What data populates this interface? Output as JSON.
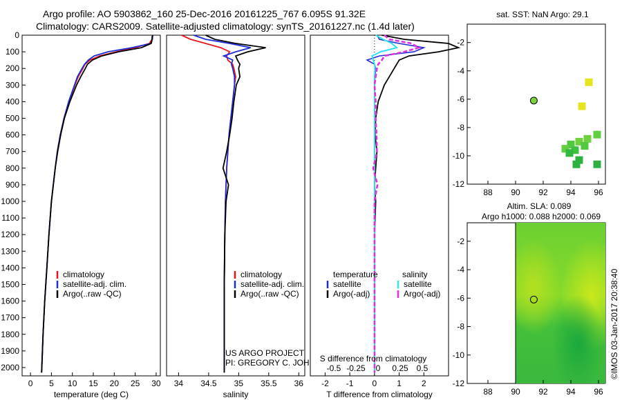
{
  "header": {
    "line1": "Argo profile: AO 5903862_160 25-Dec-2016 20161225_767 6.095S 91.32E",
    "line2": "Climatology: CARS2009. Satellite-adjusted climatology: synTS_20161227.nc (1.4d later)"
  },
  "watermark": "©IMOS 03-Jan-2017 20:38:40",
  "credit": {
    "line1": "US ARGO PROJECT",
    "line2": "PI: GREGORY C. JOHNSON"
  },
  "colors": {
    "climatology": "#e8141c",
    "satellite": "#1a2cd8",
    "argo": "#000000",
    "sal_satellite": "#33e0f0",
    "sal_argo": "#e030e0"
  },
  "chart_data": [
    {
      "type": "line",
      "xlabel": "temperature (deg C)",
      "ylabel": "",
      "xlim": [
        -2,
        31
      ],
      "ylim": [
        2050,
        0
      ],
      "xticks": [
        "0",
        "5",
        "10",
        "15",
        "20",
        "25",
        "30"
      ],
      "yticks": [
        "0",
        "100",
        "200",
        "300",
        "400",
        "500",
        "600",
        "700",
        "800",
        "900",
        "1000",
        "1100",
        "1200",
        "1300",
        "1400",
        "1500",
        "1600",
        "1700",
        "1800",
        "1900",
        "2000"
      ],
      "legend": [
        "climatology",
        "satellite-adj. clim.",
        "Argo(..raw -QC)"
      ],
      "legend_position": "lower-middle",
      "depth": [
        0,
        25,
        50,
        75,
        100,
        125,
        150,
        175,
        200,
        250,
        300,
        400,
        500,
        600,
        700,
        800,
        1000,
        1200,
        1400,
        1600,
        1800,
        2000,
        2030
      ],
      "series": [
        {
          "name": "climatology",
          "values": [
            29.1,
            29.0,
            28.4,
            25.0,
            20.5,
            16.5,
            14.2,
            13.0,
            12.5,
            11.4,
            10.6,
            9.2,
            8.0,
            7.1,
            6.4,
            5.9,
            5.0,
            4.4,
            3.9,
            3.4,
            3.0,
            2.7,
            2.65
          ]
        },
        {
          "name": "satellite-adj. clim.",
          "values": [
            29.2,
            29.1,
            28.8,
            24.2,
            18.5,
            15.2,
            13.8,
            12.9,
            12.3,
            11.2,
            10.5,
            9.1,
            8.0,
            7.1,
            6.4,
            5.9,
            5.0,
            4.4,
            3.9,
            3.4,
            3.0,
            2.7,
            2.65
          ]
        },
        {
          "name": "Argo(..raw -QC)",
          "values": [
            29.1,
            29.0,
            28.8,
            26.5,
            21.0,
            17.0,
            14.8,
            13.6,
            13.1,
            12.0,
            11.0,
            9.4,
            8.1,
            7.2,
            6.5,
            5.9,
            5.0,
            4.4,
            3.9,
            3.4,
            3.0,
            2.7,
            2.65
          ]
        }
      ]
    },
    {
      "type": "line",
      "xlabel": "salinity",
      "ylabel": "",
      "xlim": [
        33.8,
        36.1
      ],
      "ylim": [
        2050,
        0
      ],
      "xticks": [
        "34",
        "34.5",
        "35",
        "35.5",
        "36"
      ],
      "legend": [
        "climatology",
        "satellite-adj. clim.",
        "Argo(..raw -QC)"
      ],
      "legend_position": "lower-right",
      "depth": [
        0,
        25,
        50,
        75,
        100,
        125,
        150,
        175,
        200,
        250,
        300,
        400,
        500,
        600,
        700,
        800,
        900,
        1000,
        1200,
        1500,
        2000,
        2030
      ],
      "series": [
        {
          "name": "climatology",
          "values": [
            34.05,
            34.2,
            34.45,
            34.7,
            34.85,
            34.8,
            34.82,
            34.9,
            34.92,
            34.95,
            34.93,
            34.9,
            34.87,
            34.84,
            34.82,
            34.8,
            34.79,
            34.78,
            34.77,
            34.76,
            34.76,
            34.76
          ]
        },
        {
          "name": "satellite-adj. clim.",
          "values": [
            34.25,
            34.45,
            34.85,
            35.2,
            34.95,
            34.75,
            34.9,
            34.88,
            34.9,
            34.93,
            34.93,
            34.9,
            34.87,
            34.84,
            34.82,
            34.8,
            34.79,
            34.78,
            34.77,
            34.76,
            34.76,
            34.76
          ]
        },
        {
          "name": "Argo(..raw -QC)",
          "values": [
            34.45,
            34.6,
            34.95,
            35.45,
            35.15,
            34.95,
            34.98,
            35.02,
            35.0,
            35.02,
            34.96,
            34.92,
            34.89,
            34.85,
            34.8,
            34.74,
            34.83,
            34.79,
            34.77,
            34.76,
            34.76,
            34.76
          ]
        }
      ]
    },
    {
      "type": "line",
      "xlabel": "T difference from climatology",
      "x2label": "S difference from climatology",
      "xlim": [
        -2.6,
        3.0
      ],
      "ylim": [
        2050,
        0
      ],
      "xticks": [
        "-2",
        "-1",
        "0",
        "1",
        "2"
      ],
      "x2ticks": [
        "-0.5",
        "-0.25",
        "0",
        "0.25",
        "0.5"
      ],
      "legend_temperature": {
        "title": "temperature",
        "entries": [
          "satellite",
          "Argo(-adj)"
        ]
      },
      "legend_salinity": {
        "title": "salinity",
        "entries": [
          "satellite",
          "Argo(-adj)"
        ]
      },
      "depth": [
        0,
        25,
        50,
        75,
        100,
        125,
        150,
        175,
        200,
        250,
        300,
        400,
        500,
        600,
        700,
        800,
        900,
        1000,
        1200,
        1500,
        2000,
        2030
      ],
      "series": [
        {
          "name": "temperature satellite",
          "values": [
            0.1,
            0.2,
            1.0,
            2.0,
            1.6,
            0.2,
            -0.3,
            0.0,
            0.05,
            0.02,
            0.0,
            0.0,
            0.0,
            0.0,
            0.0,
            0.0,
            0.0,
            0.0,
            0.0,
            0.0,
            0.0,
            0.0
          ]
        },
        {
          "name": "temperature Argo(-adj)",
          "values": [
            0.3,
            1.2,
            3.0,
            3.4,
            2.6,
            1.4,
            1.0,
            0.9,
            0.8,
            0.6,
            0.4,
            0.15,
            0.05,
            0.02,
            0.1,
            0.05,
            0.0,
            0.05,
            0.0,
            0.0,
            0.0,
            0.0
          ]
        },
        {
          "name": "salinity satellite",
          "values": [
            0.05,
            0.35,
            0.7,
            0.9,
            0.25,
            -0.1,
            -0.05,
            0.0,
            0.02,
            0.0,
            0.0,
            0.0,
            0.0,
            0.0,
            0.0,
            0.0,
            0.0,
            0.0,
            0.0,
            0.0,
            0.0,
            0.0
          ]
        },
        {
          "name": "salinity Argo(-adj)",
          "values": [
            0.4,
            0.6,
            1.5,
            1.8,
            1.2,
            0.4,
            0.3,
            0.15,
            0.1,
            0.05,
            0.0,
            0.05,
            0.05,
            0.08,
            0.1,
            -0.05,
            0.12,
            0.0,
            0.0,
            0.0,
            0.0,
            0.0
          ]
        }
      ]
    },
    {
      "type": "scatter",
      "title": "sat. SST: NaN Argo: 29.1",
      "xlim": [
        86.5,
        96.5
      ],
      "ylim": [
        -12,
        -0.7
      ],
      "xticks": [
        "88",
        "90",
        "92",
        "94",
        "96"
      ],
      "yticks": [
        "-2",
        "-4",
        "-6",
        "-8",
        "-10",
        "-12"
      ],
      "argo_position": {
        "lon": 91.32,
        "lat": -6.1
      },
      "points": [
        {
          "lon": 95.3,
          "lat": -4.8,
          "color": "#e6e620"
        },
        {
          "lon": 94.8,
          "lat": -6.5,
          "color": "#e6e620"
        },
        {
          "lon": 95.9,
          "lat": -8.5,
          "color": "#60d040"
        },
        {
          "lon": 95.2,
          "lat": -8.8,
          "color": "#70d040"
        },
        {
          "lon": 94.6,
          "lat": -9.0,
          "color": "#70d040"
        },
        {
          "lon": 95.0,
          "lat": -9.3,
          "color": "#50c840"
        },
        {
          "lon": 94.0,
          "lat": -9.2,
          "color": "#50c840"
        },
        {
          "lon": 93.6,
          "lat": -9.5,
          "color": "#60d040"
        },
        {
          "lon": 94.3,
          "lat": -9.6,
          "color": "#40c040"
        },
        {
          "lon": 93.9,
          "lat": -9.8,
          "color": "#30b840"
        },
        {
          "lon": 94.6,
          "lat": -10.3,
          "color": "#30b040"
        },
        {
          "lon": 94.4,
          "lat": -10.6,
          "color": "#30b040"
        },
        {
          "lon": 95.9,
          "lat": -10.6,
          "color": "#30b040"
        }
      ]
    },
    {
      "type": "heatmap",
      "title_line1": "Altim. SLA: 0.089",
      "title_line2": "Argo h1000: 0.088 h2000: 0.069",
      "xlim": [
        86.5,
        96.5
      ],
      "ylim": [
        -12,
        -0.7
      ],
      "xticks": [
        "88",
        "90",
        "92",
        "94",
        "96"
      ],
      "yticks": [
        "-2",
        "-4",
        "-6",
        "-8",
        "-10",
        "-12"
      ],
      "data_extent_lon": [
        90,
        96.5
      ],
      "argo_position": {
        "lon": 91.32,
        "lat": -6.1
      }
    }
  ]
}
